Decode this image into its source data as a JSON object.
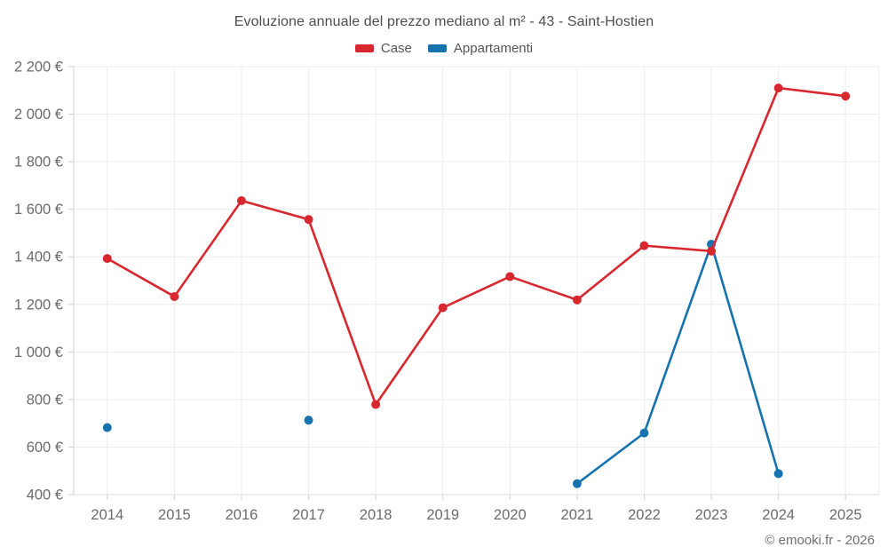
{
  "header": {
    "title": "Evoluzione annuale del prezzo mediano al m² - 43 - Saint-Hostien"
  },
  "footer": {
    "copyright": "© emooki.fr - 2026"
  },
  "colors": {
    "case_red": "#d7282f",
    "appartamenti_blue": "#1673ad",
    "grid_light": "#ededed",
    "axis_gray": "#d2d2d2",
    "tick_text": "#6b6b6b"
  },
  "chart_data": {
    "type": "line",
    "title": "Evoluzione annuale del prezzo mediano al m² - 43 - Saint-Hostien",
    "categories": [
      "2014",
      "2015",
      "2016",
      "2017",
      "2018",
      "2019",
      "2020",
      "2021",
      "2022",
      "2023",
      "2024",
      "2025"
    ],
    "series": [
      {
        "name": "Case",
        "color": "#d7282f",
        "values": [
          1393,
          1233,
          1636,
          1557,
          779,
          1186,
          1317,
          1219,
          1447,
          1424,
          2110,
          2076
        ]
      },
      {
        "name": "Appartamenti",
        "color": "#1673ad",
        "values": [
          682,
          null,
          null,
          713,
          null,
          null,
          null,
          446,
          659,
          1453,
          488,
          null
        ]
      }
    ],
    "xlabel": "",
    "ylabel": "",
    "ylim": [
      400,
      2200
    ],
    "ytick_step": 200,
    "ytick_suffix": " €",
    "grid": true,
    "legend_position": "top"
  }
}
